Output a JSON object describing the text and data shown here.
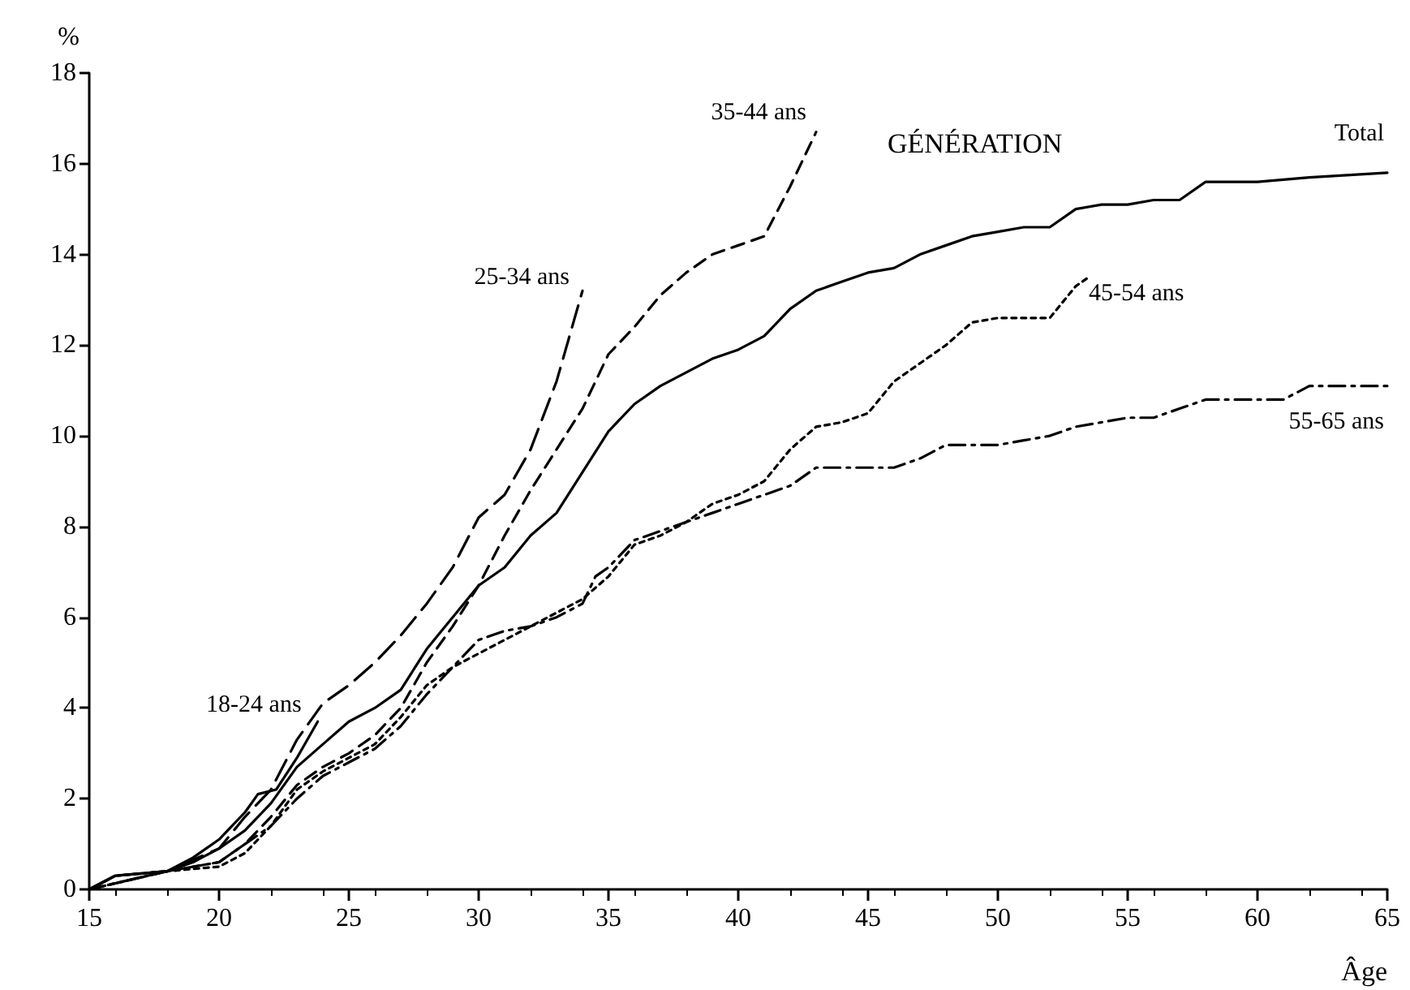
{
  "chart_data": {
    "type": "line",
    "xlabel": "Âge",
    "ylabel": "%",
    "xlim": [
      15,
      65
    ],
    "xticks": [
      15,
      20,
      25,
      30,
      35,
      40,
      45,
      50,
      55,
      60,
      65
    ],
    "ylim": [
      0,
      18
    ],
    "yticks": [
      0,
      2,
      4,
      6,
      8,
      10,
      12,
      14,
      16,
      18
    ],
    "grid": false,
    "legend": false,
    "annotations": [
      "GÉNÉRATION"
    ],
    "series": [
      {
        "name": "18-24 ans",
        "color": "#000000",
        "line_style": "solid",
        "x": [
          15,
          16,
          18,
          19,
          20,
          21,
          21.5,
          22.2,
          23,
          23.8
        ],
        "values": [
          0,
          0.3,
          0.4,
          0.7,
          1.1,
          1.7,
          2.1,
          2.2,
          2.9,
          3.7
        ]
      },
      {
        "name": "25-34 ans",
        "color": "#000000",
        "line_style": "dashed",
        "x": [
          15,
          16,
          18,
          20,
          21,
          22,
          23,
          24,
          25,
          26,
          27,
          28,
          29,
          30,
          31,
          32,
          33,
          34
        ],
        "values": [
          0,
          0.3,
          0.4,
          0.9,
          1.6,
          2.2,
          3.3,
          4.1,
          4.5,
          5.0,
          5.6,
          6.3,
          7.1,
          8.2,
          8.7,
          9.7,
          11.2,
          13.2
        ]
      },
      {
        "name": "35-44 ans",
        "color": "#000000",
        "line_style": "dashed",
        "x": [
          15,
          18,
          20,
          21,
          22,
          23,
          24,
          25,
          26,
          27,
          28,
          29,
          30,
          31,
          32,
          33,
          34,
          35,
          36,
          37,
          38,
          39,
          40,
          41,
          42,
          43
        ],
        "values": [
          0,
          0.4,
          0.6,
          1.0,
          1.6,
          2.3,
          2.7,
          3.0,
          3.4,
          4.0,
          5.0,
          5.8,
          6.7,
          7.8,
          8.8,
          9.7,
          10.6,
          11.8,
          12.4,
          13.1,
          13.6,
          14.0,
          14.2,
          14.4,
          15.5,
          16.7
        ]
      },
      {
        "name": "45-54 ans",
        "color": "#000000",
        "line_style": "dotted",
        "x": [
          15,
          18,
          20,
          21,
          22,
          23,
          24,
          25,
          26,
          27,
          28,
          29,
          30,
          31,
          32,
          33,
          34,
          35,
          36,
          37,
          38,
          39,
          40,
          41,
          42,
          43,
          44,
          45,
          46,
          47,
          48,
          49,
          50,
          51,
          52,
          53,
          53.5
        ],
        "values": [
          0,
          0.4,
          0.5,
          0.8,
          1.4,
          2.2,
          2.6,
          2.9,
          3.2,
          3.8,
          4.5,
          4.9,
          5.2,
          5.5,
          5.8,
          6.1,
          6.4,
          6.9,
          7.6,
          7.8,
          8.1,
          8.5,
          8.7,
          9.0,
          9.7,
          10.2,
          10.3,
          10.5,
          11.2,
          11.6,
          12.0,
          12.5,
          12.6,
          12.6,
          12.6,
          13.3,
          13.5
        ]
      },
      {
        "name": "55-65 ans",
        "color": "#000000",
        "line_style": "dashed",
        "x": [
          15,
          18,
          20,
          22,
          23,
          24,
          25,
          26,
          27,
          28,
          29,
          30,
          31,
          32,
          33,
          34,
          34.5,
          35,
          36,
          37,
          38,
          39,
          40,
          41,
          42,
          43,
          44,
          45,
          46,
          47,
          48,
          49,
          50,
          51,
          52,
          53,
          54,
          55,
          56,
          57,
          58,
          59,
          60,
          61,
          62,
          63,
          65
        ],
        "values": [
          0,
          0.4,
          0.6,
          1.4,
          2.0,
          2.5,
          2.8,
          3.1,
          3.6,
          4.3,
          4.9,
          5.5,
          5.7,
          5.8,
          6.0,
          6.3,
          6.9,
          7.1,
          7.7,
          7.9,
          8.1,
          8.3,
          8.5,
          8.7,
          8.9,
          9.3,
          9.3,
          9.3,
          9.3,
          9.5,
          9.8,
          9.8,
          9.8,
          9.9,
          10.0,
          10.2,
          10.3,
          10.4,
          10.4,
          10.6,
          10.8,
          10.8,
          10.8,
          10.8,
          11.1,
          11.1,
          11.1
        ]
      },
      {
        "name": "Total",
        "color": "#000000",
        "line_style": "solid",
        "x": [
          15,
          16,
          18,
          19,
          20,
          21,
          22,
          23,
          24,
          25,
          26,
          27,
          28,
          29,
          30,
          31,
          32,
          33,
          34,
          35,
          36,
          37,
          38,
          39,
          40,
          41,
          42,
          43,
          44,
          45,
          46,
          47,
          48,
          49,
          50,
          51,
          52,
          53,
          54,
          55,
          56,
          57,
          58,
          59,
          60,
          62,
          65
        ],
        "values": [
          0,
          0.3,
          0.4,
          0.6,
          0.9,
          1.3,
          1.9,
          2.7,
          3.2,
          3.7,
          4.0,
          4.4,
          5.3,
          6.0,
          6.7,
          7.1,
          7.8,
          8.3,
          9.2,
          10.1,
          10.7,
          11.1,
          11.4,
          11.7,
          11.9,
          12.2,
          12.8,
          13.2,
          13.4,
          13.6,
          13.7,
          14.0,
          14.2,
          14.4,
          14.5,
          14.6,
          14.6,
          15.0,
          15.1,
          15.1,
          15.2,
          15.2,
          15.6,
          15.6,
          15.6,
          15.7,
          15.8
        ]
      }
    ]
  }
}
